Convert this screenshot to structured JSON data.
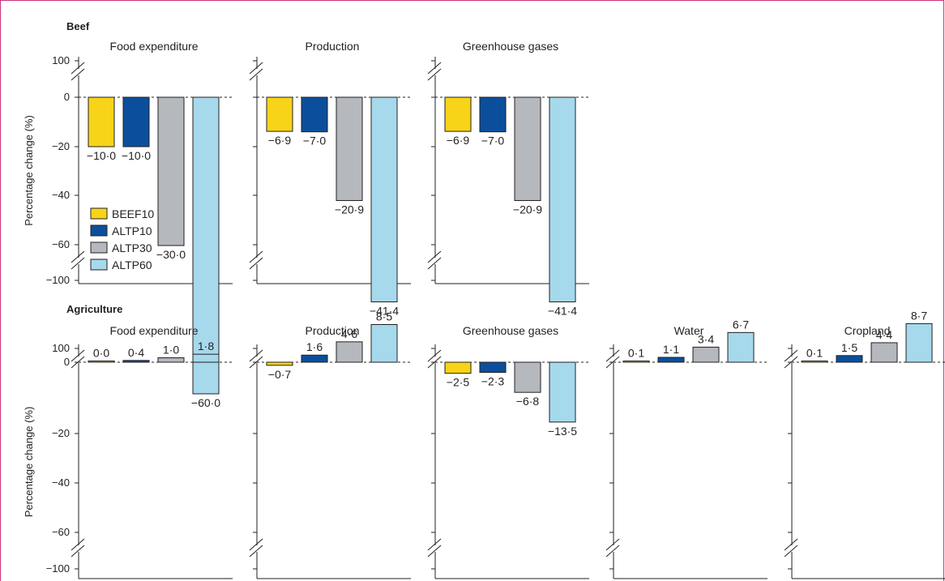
{
  "colors": {
    "BEEF10": "#f7d417",
    "ALTP10": "#0b4f9c",
    "ALTP30": "#b5b8bd",
    "ALTP60": "#a6d9ec",
    "border": "#c8357a"
  },
  "legend": [
    "BEEF10",
    "ALTP10",
    "ALTP30",
    "ALTP60"
  ],
  "y_axis": {
    "label": "Percentage change (%)",
    "ticks": [
      "100",
      "0",
      "-20",
      "-40",
      "-60",
      "-100"
    ]
  },
  "chart_data": [
    {
      "section": "Beef",
      "type": "bar",
      "panels": [
        {
          "title": "Food expenditure",
          "series": [
            "BEEF10",
            "ALTP10",
            "ALTP30",
            "ALTP60"
          ],
          "values": [
            -10.0,
            -10.0,
            -30.0,
            -60.0
          ],
          "labels": [
            "−10·0",
            "−10·0",
            "−30·0",
            "−60·0"
          ]
        },
        {
          "title": "Production",
          "series": [
            "BEEF10",
            "ALTP10",
            "ALTP30",
            "ALTP60"
          ],
          "values": [
            -6.9,
            -7.0,
            -20.9,
            -41.4
          ],
          "labels": [
            "−6·9",
            "−7·0",
            "−20·9",
            "−41·4"
          ]
        },
        {
          "title": "Greenhouse gases",
          "series": [
            "BEEF10",
            "ALTP10",
            "ALTP30",
            "ALTP60"
          ],
          "values": [
            -6.9,
            -7.0,
            -20.9,
            -41.4
          ],
          "labels": [
            "−6·9",
            "−7·0",
            "−20·9",
            "−41·4"
          ]
        }
      ],
      "ylim": [
        -100,
        100
      ]
    },
    {
      "section": "Agriculture",
      "type": "bar",
      "panels": [
        {
          "title": "Food expenditure",
          "series": [
            "BEEF10",
            "ALTP10",
            "ALTP30",
            "ALTP60"
          ],
          "values": [
            0.0,
            0.4,
            1.0,
            1.8
          ],
          "labels": [
            "0·0",
            "0·4",
            "1·0",
            "1·8"
          ]
        },
        {
          "title": "Production",
          "series": [
            "BEEF10",
            "ALTP10",
            "ALTP30",
            "ALTP60"
          ],
          "values": [
            -0.7,
            1.6,
            4.6,
            8.5
          ],
          "labels": [
            "−0·7",
            "1·6",
            "4·6",
            "8·5"
          ]
        },
        {
          "title": "Greenhouse gases",
          "series": [
            "BEEF10",
            "ALTP10",
            "ALTP30",
            "ALTP60"
          ],
          "values": [
            -2.5,
            -2.3,
            -6.8,
            -13.5
          ],
          "labels": [
            "−2·5",
            "−2·3",
            "−6·8",
            "−13·5"
          ]
        },
        {
          "title": "Water",
          "series": [
            "BEEF10",
            "ALTP10",
            "ALTP30",
            "ALTP60"
          ],
          "values": [
            0.1,
            1.1,
            3.4,
            6.7
          ],
          "labels": [
            "0·1",
            "1·1",
            "3·4",
            "6·7"
          ]
        },
        {
          "title": "Cropland",
          "series": [
            "BEEF10",
            "ALTP10",
            "ALTP30",
            "ALTP60"
          ],
          "values": [
            0.1,
            1.5,
            4.4,
            8.7
          ],
          "labels": [
            "0·1",
            "1·5",
            "4·4",
            "8·7"
          ]
        }
      ],
      "ylim": [
        -100,
        100
      ]
    }
  ]
}
